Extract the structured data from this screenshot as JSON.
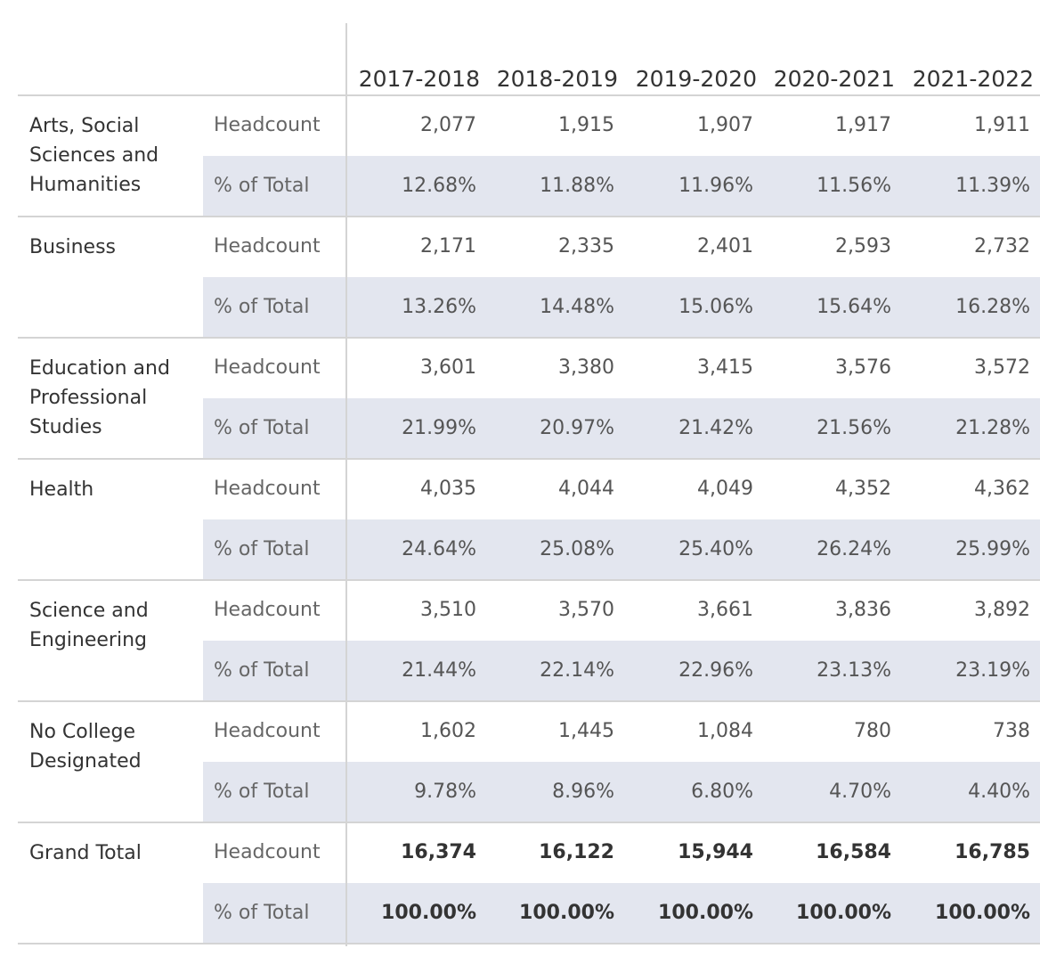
{
  "chart_data": {
    "type": "table",
    "columns": [
      "2017-2018",
      "2018-2019",
      "2019-2020",
      "2020-2021",
      "2021-2022"
    ],
    "rows": [
      {
        "college": "Arts, Social Sciences and Humanities",
        "college_lines": [
          "Arts, Social",
          "Sciences and",
          "Humanities"
        ],
        "measures": [
          {
            "label": "Headcount",
            "values": [
              "2,077",
              "1,915",
              "1,907",
              "1,917",
              "1,911"
            ]
          },
          {
            "label": "% of Total",
            "values": [
              "12.68%",
              "11.88%",
              "11.96%",
              "11.56%",
              "11.39%"
            ]
          }
        ]
      },
      {
        "college": "Business",
        "college_lines": [
          "Business"
        ],
        "measures": [
          {
            "label": "Headcount",
            "values": [
              "2,171",
              "2,335",
              "2,401",
              "2,593",
              "2,732"
            ]
          },
          {
            "label": "% of Total",
            "values": [
              "13.26%",
              "14.48%",
              "15.06%",
              "15.64%",
              "16.28%"
            ]
          }
        ]
      },
      {
        "college": "Education and Professional Studies",
        "college_lines": [
          "Education and",
          "Professional",
          "Studies"
        ],
        "measures": [
          {
            "label": "Headcount",
            "values": [
              "3,601",
              "3,380",
              "3,415",
              "3,576",
              "3,572"
            ]
          },
          {
            "label": "% of Total",
            "values": [
              "21.99%",
              "20.97%",
              "21.42%",
              "21.56%",
              "21.28%"
            ]
          }
        ]
      },
      {
        "college": "Health",
        "college_lines": [
          "Health"
        ],
        "measures": [
          {
            "label": "Headcount",
            "values": [
              "4,035",
              "4,044",
              "4,049",
              "4,352",
              "4,362"
            ]
          },
          {
            "label": "% of Total",
            "values": [
              "24.64%",
              "25.08%",
              "25.40%",
              "26.24%",
              "25.99%"
            ]
          }
        ]
      },
      {
        "college": "Science and Engineering",
        "college_lines": [
          "Science and",
          "Engineering"
        ],
        "measures": [
          {
            "label": "Headcount",
            "values": [
              "3,510",
              "3,570",
              "3,661",
              "3,836",
              "3,892"
            ]
          },
          {
            "label": "% of Total",
            "values": [
              "21.44%",
              "22.14%",
              "22.96%",
              "23.13%",
              "23.19%"
            ]
          }
        ]
      },
      {
        "college": "No College Designated",
        "college_lines": [
          "No College",
          "Designated"
        ],
        "measures": [
          {
            "label": "Headcount",
            "values": [
              "1,602",
              "1,445",
              "1,084",
              "780",
              "738"
            ]
          },
          {
            "label": "% of Total",
            "values": [
              "9.78%",
              "8.96%",
              "6.80%",
              "4.70%",
              "4.40%"
            ]
          }
        ]
      },
      {
        "college": "Grand Total",
        "college_lines": [
          "Grand Total"
        ],
        "total": true,
        "measures": [
          {
            "label": "Headcount",
            "values": [
              "16,374",
              "16,122",
              "15,944",
              "16,584",
              "16,785"
            ]
          },
          {
            "label": "% of Total",
            "values": [
              "100.00%",
              "100.00%",
              "100.00%",
              "100.00%",
              "100.00%"
            ]
          }
        ]
      }
    ]
  },
  "colors": {
    "band": "#e3e6ef",
    "gridline": "#d4d4d4",
    "text": "#333333",
    "measure_text": "#666666"
  }
}
